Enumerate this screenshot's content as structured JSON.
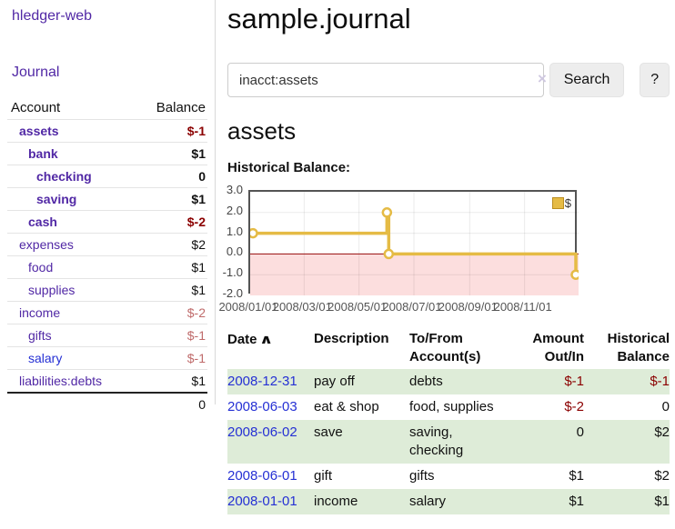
{
  "app": {
    "brand": "hledger-web",
    "nav_journal": "Journal"
  },
  "sidebar": {
    "header": {
      "account": "Account",
      "balance": "Balance"
    },
    "accounts": [
      {
        "label": "assets",
        "depth": 1,
        "balance": "$-1"
      },
      {
        "label": "bank",
        "depth": 2,
        "balance": "$1"
      },
      {
        "label": "checking",
        "depth": 3,
        "balance": "0"
      },
      {
        "label": "saving",
        "depth": 3,
        "balance": "$1"
      },
      {
        "label": "cash",
        "depth": 2,
        "balance": "$-2"
      },
      {
        "label": "expenses",
        "depth": 1,
        "balance": "$2"
      },
      {
        "label": "food",
        "depth": 2,
        "balance": "$1"
      },
      {
        "label": "supplies",
        "depth": 2,
        "balance": "$1"
      },
      {
        "label": "income",
        "depth": 1,
        "balance": "$-2"
      },
      {
        "label": "gifts",
        "depth": 2,
        "balance": "$-1"
      },
      {
        "label": "salary",
        "depth": 2,
        "balance": "$-1"
      },
      {
        "label": "liabilities:debts",
        "depth": 1,
        "balance": "$1"
      }
    ],
    "total": "0"
  },
  "main": {
    "title": "sample.journal",
    "search": {
      "value": "inacct:assets",
      "clear_icon": "×",
      "button": "Search",
      "help_button": "?"
    },
    "account_heading": "assets",
    "chart_heading": "Historical Balance:",
    "register": {
      "headers": {
        "date": "Date",
        "sort_icon": "∧",
        "description": "Description",
        "tofrom": "To/From\nAccount(s)",
        "amount": "Amount\nOut/In",
        "balance": "Historical\nBalance"
      },
      "rows": [
        {
          "date": "2008-12-31",
          "description": "pay off",
          "accounts": "debts",
          "amount": "$-1",
          "balance": "$-1"
        },
        {
          "date": "2008-06-03",
          "description": "eat & shop",
          "accounts": "food, supplies",
          "amount": "$-2",
          "balance": "0"
        },
        {
          "date": "2008-06-02",
          "description": "save",
          "accounts": "saving,\nchecking",
          "amount": "0",
          "balance": "$2"
        },
        {
          "date": "2008-06-01",
          "description": "gift",
          "accounts": "gifts",
          "amount": "$1",
          "balance": "$2"
        },
        {
          "date": "2008-01-01",
          "description": "income",
          "accounts": "salary",
          "amount": "$1",
          "balance": "$1"
        }
      ]
    }
  },
  "chart_data": {
    "type": "line",
    "step": true,
    "title": "Historical Balance",
    "series": [
      {
        "name": "$",
        "color": "#e5bb45",
        "points": [
          [
            "2008-01-01",
            1
          ],
          [
            "2008-06-01",
            2
          ],
          [
            "2008-06-03",
            0
          ],
          [
            "2008-12-31",
            -1
          ]
        ]
      }
    ],
    "xlim": [
      "2008-01-01",
      "2008-12-31"
    ],
    "ylim": [
      -2,
      3
    ],
    "yticks": [
      "3.0",
      "2.0",
      "1.0",
      "0.0",
      "-1.0",
      "-2.0"
    ],
    "xticks": [
      "2008/01/01",
      "2008/03/01",
      "2008/05/01",
      "2008/07/01",
      "2008/09/01",
      "2008/11/01"
    ],
    "legend": {
      "label": "$",
      "position": "top-right"
    },
    "grid": true,
    "negative_region_color": "#fcdede",
    "zero_line_color": "#991111"
  }
}
